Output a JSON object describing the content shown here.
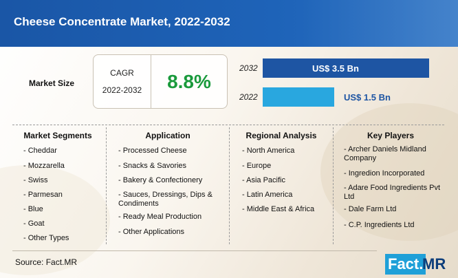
{
  "header": {
    "title": "Cheese Concentrate Market, 2022-2032"
  },
  "market_size": {
    "label": "Market Size",
    "cagr_label": "CAGR",
    "cagr_period": "2022-2032",
    "cagr_value": "8.8%"
  },
  "colors": {
    "bar_2032": "#1e55a3",
    "bar_2022": "#29a7df",
    "cagr": "#1a9a3c",
    "header": "#1a56a6"
  },
  "chart_data": {
    "type": "bar",
    "orientation": "horizontal",
    "categories": [
      "2032",
      "2022"
    ],
    "values": [
      3.5,
      1.5
    ],
    "value_labels": [
      "US$ 3.5 Bn",
      "US$ 1.5 Bn"
    ],
    "unit": "US$ Bn",
    "xlim": [
      0,
      3.5
    ],
    "title": "",
    "xlabel": "",
    "ylabel": ""
  },
  "columns": [
    {
      "heading": "Market Segments",
      "items": [
        "- Cheddar",
        "- Mozzarella",
        "- Swiss",
        "- Parmesan",
        "- Blue",
        "- Goat",
        "- Other Types"
      ]
    },
    {
      "heading": "Application",
      "items": [
        "- Processed Cheese",
        "- Snacks & Savories",
        "- Bakery & Confectionery",
        "- Sauces, Dressings, Dips & Condiments",
        "- Ready Meal Production",
        "- Other Applications"
      ]
    },
    {
      "heading": "Regional Analysis",
      "items": [
        "- North America",
        "- Europe",
        "- Asia Pacific",
        "- Latin America",
        "- Middle East & Africa"
      ]
    },
    {
      "heading": "Key Players",
      "items": [
        "- Archer Daniels Midland Company",
        "- Ingredion Incorporated",
        "- Adare Food Ingredients Pvt Ltd",
        "- Dale Farm Ltd",
        "- C.P. Ingredients Ltd"
      ]
    }
  ],
  "source": "Source: Fact.MR",
  "logo": {
    "part1": "Fact.",
    "part2": "MR"
  }
}
